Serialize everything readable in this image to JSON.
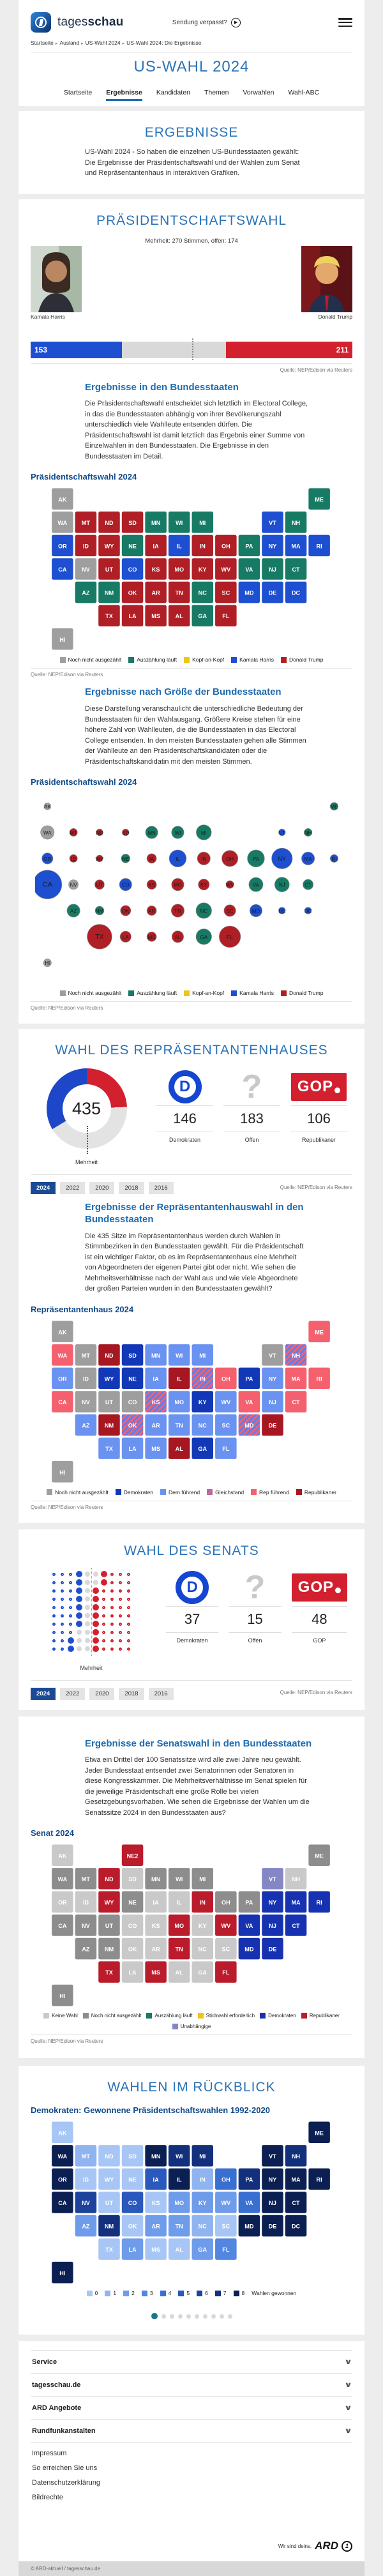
{
  "header": {
    "brand_regular": "tages",
    "brand_bold": "schau",
    "sendung_link": "Sendung verpasst?",
    "breadcrumb": [
      "Startseite",
      "Ausland",
      "US-Wahl 2024",
      "US-Wahl 2024: Die Ergebnisse"
    ],
    "page_title": "US-WAHL 2024",
    "tabs": [
      {
        "label": "Startseite",
        "active": false
      },
      {
        "label": "Ergebnisse",
        "active": true
      },
      {
        "label": "Kandidaten",
        "active": false
      },
      {
        "label": "Themen",
        "active": false
      },
      {
        "label": "Vorwahlen",
        "active": false
      },
      {
        "label": "Wahl-ABC",
        "active": false
      }
    ]
  },
  "intro": {
    "title": "ERGEBNISSE",
    "text": "US-Wahl 2024 - So haben die einzelnen US-Bundesstaaten gewählt: Die Ergebnisse der Präsidentschaftswahl und der Wahlen zum Senat und Repräsentantenhaus in interaktiven Grafiken."
  },
  "president": {
    "title": "PRÄSIDENTSCHAFTSWAHL",
    "majority_note": "Mehrheit: 270 Stimmen, offen: 174",
    "candidate_left": "Kamala Harris",
    "candidate_right": "Donald Trump",
    "source": "Quelle: NEP/Edison via Reuters",
    "states_section": {
      "title": "Ergebnisse in den Bundesstaaten",
      "text": "Die Präsidentschaftswahl entscheidet sich letztlich im Electoral College, in das die Bundesstaaten abhängig von ihrer Bevölkerungszahl unterschiedlich viele Wahlleute entsenden dürfen. Die Präsidentschaftswahl ist damit letztlich das Ergebnis einer Summe von Einzelwahlen in den Bundesstaaten. Die Ergebnisse in den Bundesstaaten im Detail.",
      "map_title": "Präsidentschaftswahl 2024",
      "source": "Quelle: NEP/Edison via Reuters"
    },
    "bubble_section": {
      "title": "Ergebnisse nach Größe der Bundesstaaten",
      "text": "Diese Darstellung veranschaulicht die unterschiedliche Bedeutung der Bundesstaaten für den Wahlausgang. Größere Kreise stehen für eine höhere Zahl von Wahlleuten, die die Bundesstaaten in das Electoral College entsenden. In den meisten Bundesstaaten gehen alle Stimmen der Wahlleute an den Präsidentschaftskandidaten oder die Präsidentschaftskandidatin mit den meisten Stimmen.",
      "map_title": "Präsidentschaftswahl 2024",
      "source": "Quelle: NEP/Edison via Reuters"
    }
  },
  "house": {
    "title": "WAHL DES REPRÄSENTANTENHAUSES",
    "majority_label": "Mehrheit",
    "stats": [
      {
        "logo": "dem",
        "value": "146",
        "label": "Demokraten"
      },
      {
        "logo": "question",
        "value": "183",
        "label": "Offen"
      },
      {
        "logo": "gop",
        "value": "106",
        "label": "Republikaner"
      }
    ],
    "years": [
      {
        "label": "2024",
        "active": true
      },
      {
        "label": "2022",
        "active": false
      },
      {
        "label": "2020",
        "active": false
      },
      {
        "label": "2018",
        "active": false
      },
      {
        "label": "2016",
        "active": false
      }
    ],
    "source": "Quelle: NEP/Edison via Reuters",
    "section": {
      "title": "Ergebnisse der Repräsentantenhauswahl in den Bundesstaaten",
      "text": "Die 435 Sitze im Repräsentantenhaus werden durch Wahlen in Stimmbezirken in den Bundesstaaten gewählt. Für die Präsidentschaft ist ein wichtiger Faktor, ob es im Repräsentantenhaus eine Mehrheit von Abgeordneten der eigenen Partei gibt oder nicht. Wie sehen die Mehrheitsverhältnisse nach der Wahl aus und wie viele Abgeordnete der großen Parteien wurden in den Bundesstaaten gewählt?",
      "map_title": "Repräsentantenhaus 2024",
      "source": "Quelle: NEP/Edison via Reuters"
    }
  },
  "senate": {
    "title": "WAHL DES SENATS",
    "majority_label": "Mehrheit",
    "stats": [
      {
        "logo": "dem",
        "value": "37",
        "label": "Demokraten"
      },
      {
        "logo": "question",
        "value": "15",
        "label": "Offen"
      },
      {
        "logo": "gop",
        "value": "48",
        "label": "GOP"
      }
    ],
    "years": [
      {
        "label": "2024",
        "active": true
      },
      {
        "label": "2022",
        "active": false
      },
      {
        "label": "2020",
        "active": false
      },
      {
        "label": "2018",
        "active": false
      },
      {
        "label": "2016",
        "active": false
      }
    ],
    "source": "Quelle: NEP/Edison via Reuters",
    "section": {
      "title": "Ergebnisse der Senatswahl in den Bundesstaaten",
      "text": "Etwa ein Drittel der 100 Senatssitze wird alle zwei Jahre neu gewählt. Jeder Bundesstaat entsendet zwei Senatorinnen oder Senatoren in diese Kongresskammer. Die Mehrheitsverhältnisse im Senat spielen für die jeweilige Präsidentschaft eine große Rolle bei vielen Gesetzgebungsvorhaben. Wie sehen die Ergebnisse der Wahlen um die Senatssitze 2024 in den Bundesstaaten aus?",
      "map_title": "Senat 2024",
      "source": "Quelle: NEP/Edison via Reuters"
    }
  },
  "retro": {
    "title": "WAHLEN IM RÜCKBLICK",
    "map_title": "Demokraten: Gewonnene Präsidentschaftswahlen 1992-2020",
    "legend_suffix": "Wahlen gewonnen",
    "carousel_dots": 10,
    "carousel_active_index": 0
  },
  "footer": {
    "accordions": [
      "Service",
      "tagesschau.de",
      "ARD Angebote",
      "Rundfunkanstalten"
    ],
    "links": [
      "Impressum",
      "So erreichen Sie uns",
      "Datenschutzerklärung",
      "Bildrechte"
    ],
    "ard_claim": "Wir sind deins.",
    "ard_word": "ARD",
    "copyright": "© ARD-aktuell / tagesschau.de"
  },
  "chart_data": [
    {
      "id": "president_bar",
      "type": "bar",
      "title": "PRÄSIDENTSCHAFTSWAHL",
      "majority": 270,
      "total": 538,
      "series": [
        {
          "name": "Kamala Harris",
          "value": 153,
          "color": "#1d4fd0"
        },
        {
          "name": "offen",
          "value": 174,
          "color": "#d9d9d9"
        },
        {
          "name": "Donald Trump",
          "value": 211,
          "color": "#d2202f"
        }
      ]
    },
    {
      "id": "president_map",
      "type": "choropleth",
      "title": "Präsidentschaftswahl 2024",
      "colors": {
        "offen": "#9e9e9e",
        "laeuft": "#177a64",
        "kopf": "#f0c419",
        "harris": "#1d4fd0",
        "trump": "#b01f26"
      },
      "legend": [
        {
          "key": "offen",
          "label": "Noch nicht ausgezählt"
        },
        {
          "key": "laeuft",
          "label": "Auszählung läuft"
        },
        {
          "key": "kopf",
          "label": "Kopf-an-Kopf"
        },
        {
          "key": "harris",
          "label": "Kamala Harris"
        },
        {
          "key": "trump",
          "label": "Donald Trump"
        }
      ],
      "states": {
        "WA": "offen",
        "NV": "offen",
        "AK": "offen",
        "HI": "offen",
        "AZ": "laeuft",
        "NM": "laeuft",
        "NE": "laeuft",
        "MN": "laeuft",
        "WI": "laeuft",
        "MI": "laeuft",
        "PA": "laeuft",
        "NJ": "laeuft",
        "CT": "laeuft",
        "NH": "laeuft",
        "ME": "laeuft",
        "VA": "laeuft",
        "NC": "laeuft",
        "GA": "laeuft",
        "OR": "harris",
        "CA": "harris",
        "CO": "harris",
        "IL": "harris",
        "NY": "harris",
        "VT": "harris",
        "MA": "harris",
        "RI": "harris",
        "MD": "harris",
        "DE": "harris",
        "DC": "harris",
        "MT": "trump",
        "ID": "trump",
        "WY": "trump",
        "ND": "trump",
        "SD": "trump",
        "UT": "trump",
        "IA": "trump",
        "KS": "trump",
        "MO": "trump",
        "OK": "trump",
        "TX": "trump",
        "LA": "trump",
        "AR": "trump",
        "MS": "trump",
        "AL": "trump",
        "TN": "trump",
        "KY": "trump",
        "IN": "trump",
        "OH": "trump",
        "WV": "trump",
        "SC": "trump",
        "FL": "trump"
      }
    },
    {
      "id": "president_bubbles",
      "type": "bubble",
      "title": "Präsidentschaftswahl 2024",
      "colors": {
        "offen": "#9e9e9e",
        "laeuft": "#177a64",
        "kopf": "#f0c419",
        "harris": "#1d4fd0",
        "trump": "#b01f26"
      },
      "legend": [
        {
          "key": "offen",
          "label": "Noch nicht ausgezählt"
        },
        {
          "key": "laeuft",
          "label": "Auszählung läuft"
        },
        {
          "key": "kopf",
          "label": "Kopf-an-Kopf"
        },
        {
          "key": "harris",
          "label": "Kamala Harris"
        },
        {
          "key": "trump",
          "label": "Donald Trump"
        }
      ],
      "electoral_votes": {
        "CA": 54,
        "TX": 40,
        "FL": 30,
        "NY": 28,
        "PA": 19,
        "IL": 19,
        "OH": 17,
        "GA": 16,
        "NC": 16,
        "MI": 15,
        "NJ": 14,
        "VA": 13,
        "WA": 12,
        "AZ": 11,
        "MA": 11,
        "TN": 11,
        "IN": 11,
        "MD": 10,
        "MN": 10,
        "MO": 10,
        "WI": 10,
        "CO": 10,
        "AL": 9,
        "SC": 9,
        "KY": 8,
        "LA": 8,
        "OR": 8,
        "OK": 7,
        "CT": 7,
        "UT": 6,
        "IA": 6,
        "NV": 6,
        "AR": 6,
        "MS": 6,
        "KS": 6,
        "NM": 5,
        "NE": 5,
        "WV": 4,
        "ID": 4,
        "HI": 4,
        "NH": 4,
        "ME": 4,
        "MT": 4,
        "RI": 4,
        "DE": 3,
        "SD": 3,
        "ND": 3,
        "AK": 3,
        "VT": 3,
        "WY": 3,
        "DC": 3
      },
      "states": {
        "WA": "offen",
        "NV": "offen",
        "AK": "offen",
        "HI": "offen",
        "AZ": "laeuft",
        "NM": "laeuft",
        "NE": "laeuft",
        "MN": "laeuft",
        "WI": "laeuft",
        "MI": "laeuft",
        "PA": "laeuft",
        "NJ": "laeuft",
        "CT": "laeuft",
        "NH": "laeuft",
        "ME": "laeuft",
        "VA": "laeuft",
        "NC": "laeuft",
        "GA": "laeuft",
        "OR": "harris",
        "CA": "harris",
        "CO": "harris",
        "IL": "harris",
        "NY": "harris",
        "VT": "harris",
        "MA": "harris",
        "RI": "harris",
        "MD": "harris",
        "DE": "harris",
        "DC": "harris",
        "MT": "trump",
        "ID": "trump",
        "WY": "trump",
        "ND": "trump",
        "SD": "trump",
        "UT": "trump",
        "IA": "trump",
        "KS": "trump",
        "MO": "trump",
        "OK": "trump",
        "TX": "trump",
        "LA": "trump",
        "AR": "trump",
        "MS": "trump",
        "AL": "trump",
        "TN": "trump",
        "KY": "trump",
        "IN": "trump",
        "OH": "trump",
        "WV": "trump",
        "SC": "trump",
        "FL": "trump"
      }
    },
    {
      "id": "house_donut",
      "type": "donut",
      "total": 435,
      "dem": 146,
      "open": 183,
      "rep": 106,
      "dem_color": "#1d47c8",
      "open_color": "#e3e3e3",
      "rep_color": "#d2202f"
    },
    {
      "id": "house_map",
      "type": "choropleth",
      "title": "Repräsentantenhaus 2024",
      "colors": {
        "offen": "#9e9e9e",
        "dem": "#1238b8",
        "demlead": "#6a92f0",
        "tie": "stripe",
        "replead": "#f4606e",
        "rep": "#a61722"
      },
      "legend": [
        {
          "key": "offen",
          "label": "Noch nicht ausgezählt"
        },
        {
          "key": "dem",
          "label": "Demokraten"
        },
        {
          "key": "demlead",
          "label": "Dem führend"
        },
        {
          "key": "tie",
          "label": "Gleichstand"
        },
        {
          "key": "replead",
          "label": "Rep führend"
        },
        {
          "key": "rep",
          "label": "Republikaner"
        }
      ],
      "states": {
        "MT": "offen",
        "ID": "offen",
        "NV": "offen",
        "UT": "offen",
        "CO": "offen",
        "AK": "offen",
        "VT": "offen",
        "HI": "offen",
        "SD": "dem",
        "WY": "dem",
        "NE": "dem",
        "PA": "dem",
        "KY": "dem",
        "GA": "dem",
        "OR": "demlead",
        "AZ": "demlead",
        "TX": "demlead",
        "MN": "demlead",
        "WI": "demlead",
        "MI": "demlead",
        "IA": "demlead",
        "MO": "demlead",
        "AR": "demlead",
        "LA": "demlead",
        "MS": "demlead",
        "TN": "demlead",
        "NC": "demlead",
        "SC": "demlead",
        "FL": "demlead",
        "WV": "demlead",
        "NY": "demlead",
        "NJ": "demlead",
        "KS": "tie",
        "OK": "tie",
        "IN": "tie",
        "NH": "tie",
        "MD": "tie",
        "WA": "replead",
        "CA": "replead",
        "OH": "replead",
        "VA": "replead",
        "ME": "replead",
        "MA": "replead",
        "CT": "replead",
        "RI": "replead",
        "ND": "rep",
        "NM": "rep",
        "IL": "rep",
        "AL": "rep",
        "DE": "rep"
      }
    },
    {
      "id": "senate_seats",
      "type": "dot-grid",
      "dem": 37,
      "open": 15,
      "gop": 48,
      "rows": [
        [
          3,
          1,
          2,
          1,
          3
        ],
        [
          3,
          1,
          2,
          1,
          3
        ],
        [
          3,
          1,
          1,
          1,
          4
        ],
        [
          3,
          1,
          1,
          1,
          4
        ],
        [
          3,
          1,
          1,
          1,
          4
        ],
        [
          3,
          1,
          1,
          1,
          4
        ],
        [
          3,
          1,
          1,
          1,
          4
        ],
        [
          3,
          0,
          2,
          1,
          4
        ],
        [
          2,
          1,
          2,
          1,
          4
        ],
        [
          2,
          1,
          2,
          1,
          4
        ]
      ]
    },
    {
      "id": "senate_map",
      "type": "choropleth",
      "title": "Senat 2024",
      "colors": {
        "keine": "#c9c9c9",
        "offen": "#8d8d8d",
        "laeuft": "#177a64",
        "stich": "#f0c419",
        "dem": "#1632b0",
        "rep": "#bb1c2c",
        "unabh": "#8486c6"
      },
      "legend": [
        {
          "key": "keine",
          "label": "Keine Wahl"
        },
        {
          "key": "offen",
          "label": "Noch nicht ausgezählt"
        },
        {
          "key": "laeuft",
          "label": "Auszählung läuft"
        },
        {
          "key": "stich",
          "label": "Stichwahl erforderlich"
        },
        {
          "key": "dem",
          "label": "Demokraten"
        },
        {
          "key": "rep",
          "label": "Republikaner"
        },
        {
          "key": "unabh",
          "label": "Unabhängige"
        }
      ],
      "states": {
        "AL": "keine",
        "AK": "keine",
        "AR": "keine",
        "CO": "keine",
        "GA": "keine",
        "ID": "keine",
        "IL": "keine",
        "IA": "keine",
        "KS": "keine",
        "KY": "keine",
        "LA": "keine",
        "NC": "keine",
        "NH": "keine",
        "OK": "keine",
        "OR": "keine",
        "SC": "keine",
        "SD": "keine",
        "WA": "offen",
        "MT": "offen",
        "NV": "offen",
        "CA": "offen",
        "UT": "offen",
        "AZ": "offen",
        "NM": "offen",
        "MN": "offen",
        "WI": "offen",
        "MI": "offen",
        "OH": "offen",
        "PA": "offen",
        "ME": "offen",
        "HI": "offen",
        "NE": "offen",
        "ND": "rep",
        "WY": "rep",
        "IN": "rep",
        "MO": "rep",
        "WV": "rep",
        "TN": "rep",
        "MS": "rep",
        "TX": "rep",
        "FL": "rep",
        "NE2": "rep",
        "NY": "dem",
        "NJ": "dem",
        "CT": "dem",
        "MA": "dem",
        "VA": "dem",
        "MD": "dem",
        "DE": "dem",
        "RI": "dem",
        "VT": "unabh"
      }
    },
    {
      "id": "retro_map",
      "type": "choropleth",
      "title": "Demokraten: Gewonnene Präsidentschaftswahlen 1992-2020",
      "ramp": [
        "#a8c6f5",
        "#8fb4f0",
        "#6f9cea",
        "#5286e0",
        "#3a6fd2",
        "#2a58bc",
        "#1c429e",
        "#12307c",
        "#0b1f52"
      ],
      "legend_values": [
        0,
        1,
        2,
        3,
        4,
        5,
        6,
        7,
        8
      ],
      "states": {
        "WA": 8,
        "OR": 8,
        "CA": 8,
        "MN": 8,
        "IL": 8,
        "ME": 8,
        "VT": 8,
        "MA": 8,
        "CT": 8,
        "RI": 8,
        "NY": 8,
        "NJ": 8,
        "DE": 8,
        "MD": 8,
        "DC": 8,
        "HI": 8,
        "WI": 7,
        "MI": 7,
        "PA": 7,
        "NH": 7,
        "NM": 7,
        "NV": 6,
        "IA": 5,
        "CO": 5,
        "VA": 4,
        "OH": 4,
        "FL": 3,
        "GA": 2,
        "AZ": 2,
        "AR": 2,
        "LA": 2,
        "TN": 2,
        "KY": 2,
        "MO": 2,
        "WV": 2,
        "MT": 1,
        "NC": 1,
        "IN": 1,
        "TX": 0,
        "OK": 0,
        "KS": 0,
        "NE": 0,
        "ND": 0,
        "SD": 0,
        "WY": 0,
        "ID": 0,
        "UT": 0,
        "AK": 0,
        "AL": 0,
        "MS": 0,
        "SC": 0
      }
    }
  ]
}
